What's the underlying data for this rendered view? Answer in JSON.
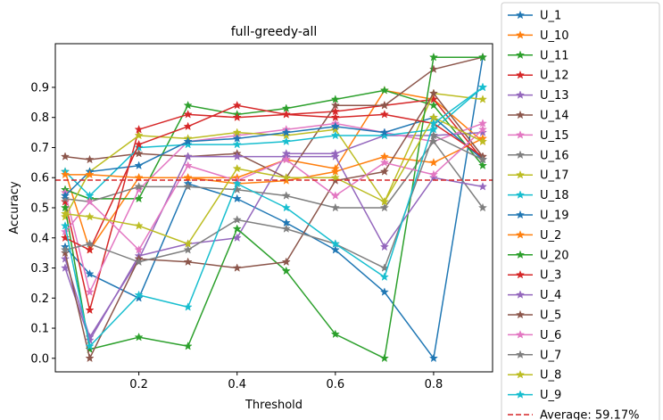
{
  "chart_data": {
    "type": "line",
    "title": "full-greedy-all",
    "xlabel": "Threshold",
    "ylabel": "Accuracy",
    "xlim": [
      0.03,
      0.92
    ],
    "ylim": [
      -0.045,
      1.045
    ],
    "xticks": [
      0.2,
      0.4,
      0.6,
      0.8
    ],
    "xtick_labels": [
      "0.2",
      "0.4",
      "0.6",
      "0.8"
    ],
    "yticks": [
      0.0,
      0.1,
      0.2,
      0.3,
      0.4,
      0.5,
      0.6,
      0.7,
      0.8,
      0.9
    ],
    "ytick_labels": [
      "0.0",
      "0.1",
      "0.2",
      "0.3",
      "0.4",
      "0.5",
      "0.6",
      "0.7",
      "0.8",
      "0.9"
    ],
    "grid": false,
    "legend_placement": "outside-right",
    "x": [
      0.05,
      0.1,
      0.2,
      0.3,
      0.4,
      0.5,
      0.6,
      0.7,
      0.8,
      0.9
    ],
    "series": [
      {
        "name": "U_1",
        "color": "#1f77b4",
        "values": [
          0.37,
          0.28,
          0.2,
          0.58,
          0.53,
          0.45,
          0.36,
          0.22,
          0.0,
          1.0
        ]
      },
      {
        "name": "U_10",
        "color": "#ff7f0e",
        "values": [
          0.62,
          0.36,
          0.6,
          0.6,
          0.6,
          0.66,
          0.63,
          0.89,
          0.86,
          0.72
        ]
      },
      {
        "name": "U_11",
        "color": "#2ca02c",
        "values": [
          0.56,
          0.53,
          0.53,
          0.84,
          0.81,
          0.83,
          0.86,
          0.89,
          0.84,
          0.64
        ]
      },
      {
        "name": "U_12",
        "color": "#d62728",
        "values": [
          0.52,
          0.16,
          0.76,
          0.81,
          0.8,
          0.81,
          0.82,
          0.84,
          0.86,
          0.66
        ]
      },
      {
        "name": "U_13",
        "color": "#9467bd",
        "values": [
          0.3,
          0.06,
          0.34,
          0.38,
          0.4,
          0.68,
          0.68,
          0.74,
          0.74,
          0.75
        ]
      },
      {
        "name": "U_14",
        "color": "#8c564b",
        "values": [
          0.67,
          0.66,
          0.68,
          0.67,
          0.68,
          0.6,
          0.84,
          0.84,
          0.96,
          1.0
        ]
      },
      {
        "name": "U_15",
        "color": "#e377c2",
        "values": [
          0.55,
          0.22,
          0.56,
          0.72,
          0.74,
          0.76,
          0.78,
          0.75,
          0.72,
          0.78
        ]
      },
      {
        "name": "U_16",
        "color": "#7f7f7f",
        "values": [
          0.53,
          0.52,
          0.57,
          0.57,
          0.56,
          0.54,
          0.5,
          0.5,
          0.72,
          0.5
        ]
      },
      {
        "name": "U_17",
        "color": "#bcbd22",
        "values": [
          0.47,
          0.62,
          0.74,
          0.73,
          0.75,
          0.74,
          0.76,
          0.52,
          0.88,
          0.86
        ]
      },
      {
        "name": "U_18",
        "color": "#17becf",
        "values": [
          0.62,
          0.54,
          0.7,
          0.71,
          0.71,
          0.72,
          0.74,
          0.74,
          0.76,
          0.9
        ]
      },
      {
        "name": "U_19",
        "color": "#1f77b4",
        "values": [
          0.54,
          0.62,
          0.64,
          0.72,
          0.73,
          0.75,
          0.77,
          0.75,
          0.8,
          0.66
        ]
      },
      {
        "name": "U_2",
        "color": "#ff7f0e",
        "values": [
          0.61,
          0.61,
          0.6,
          0.6,
          0.58,
          0.59,
          0.62,
          0.67,
          0.65,
          0.73
        ]
      },
      {
        "name": "U_20",
        "color": "#2ca02c",
        "values": [
          0.5,
          0.03,
          0.07,
          0.04,
          0.43,
          0.29,
          0.08,
          0.0,
          1.0,
          1.0
        ]
      },
      {
        "name": "U_3",
        "color": "#d62728",
        "values": [
          0.4,
          0.36,
          0.71,
          0.77,
          0.84,
          0.81,
          0.8,
          0.81,
          0.78,
          0.67
        ]
      },
      {
        "name": "U_4",
        "color": "#9467bd",
        "values": [
          0.33,
          0.07,
          0.33,
          0.67,
          0.67,
          0.67,
          0.67,
          0.37,
          0.6,
          0.57
        ]
      },
      {
        "name": "U_5",
        "color": "#8c564b",
        "values": [
          0.35,
          0.0,
          0.33,
          0.32,
          0.3,
          0.32,
          0.59,
          0.62,
          0.88,
          0.67
        ]
      },
      {
        "name": "U_6",
        "color": "#e377c2",
        "values": [
          0.42,
          0.52,
          0.36,
          0.64,
          0.59,
          0.66,
          0.54,
          0.65,
          0.61,
          0.76
        ]
      },
      {
        "name": "U_7",
        "color": "#7f7f7f",
        "values": [
          0.36,
          0.38,
          0.32,
          0.36,
          0.46,
          0.43,
          0.38,
          0.3,
          0.74,
          0.66
        ]
      },
      {
        "name": "U_8",
        "color": "#bcbd22",
        "values": [
          0.48,
          0.47,
          0.44,
          0.38,
          0.63,
          0.6,
          0.6,
          0.52,
          0.8,
          0.72
        ]
      },
      {
        "name": "U_9",
        "color": "#17becf",
        "values": [
          0.44,
          0.04,
          0.21,
          0.17,
          0.58,
          0.5,
          0.38,
          0.27,
          0.78,
          0.9
        ]
      }
    ],
    "average": {
      "label": "Average: 59.17%",
      "value": 0.5917,
      "color": "#d62728"
    }
  }
}
